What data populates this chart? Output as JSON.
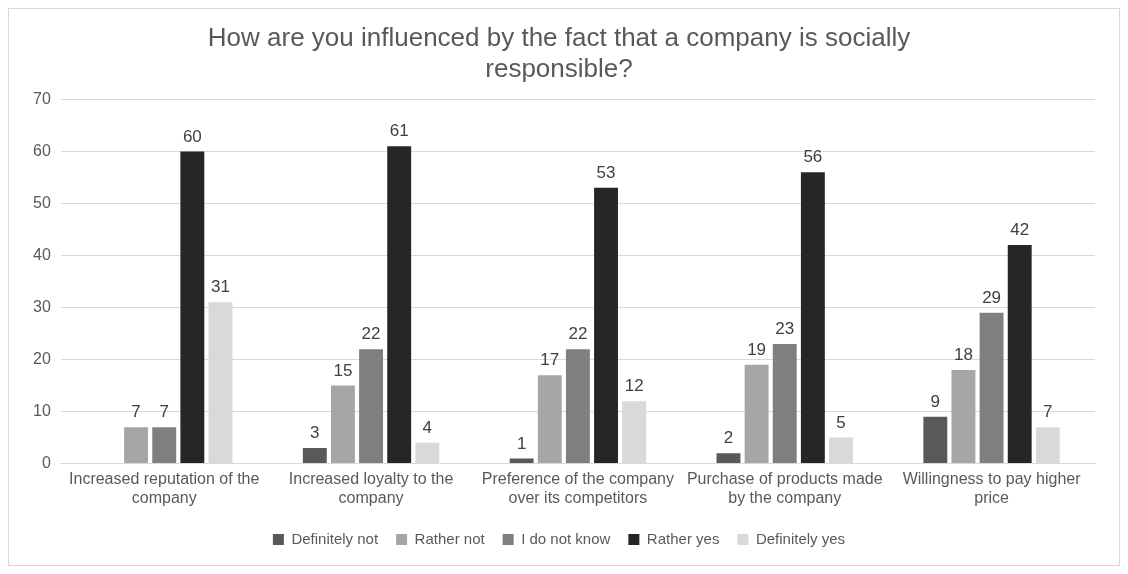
{
  "chart_data": {
    "type": "bar",
    "title": "How are you influenced by the fact that a company is socially responsible?",
    "categories": [
      "Increased reputation of the company",
      "Increased loyalty to the company",
      "Preference of the company over its competitors",
      "Purchase of products made by the company",
      "Willingness to pay higher price"
    ],
    "series": [
      {
        "name": "Definitely not",
        "color": "#595959",
        "values": [
          null,
          3,
          1,
          2,
          9
        ]
      },
      {
        "name": "Rather not",
        "color": "#a6a6a6",
        "values": [
          7,
          15,
          17,
          19,
          18
        ]
      },
      {
        "name": "I do not know",
        "color": "#7f7f7f",
        "values": [
          7,
          22,
          22,
          23,
          29
        ]
      },
      {
        "name": "Rather yes",
        "color": "#262626",
        "values": [
          60,
          61,
          53,
          56,
          42
        ]
      },
      {
        "name": "Definitely yes",
        "color": "#d9d9d9",
        "values": [
          31,
          4,
          12,
          5,
          7
        ]
      }
    ],
    "ylim": [
      0,
      70
    ],
    "yticks": [
      0,
      10,
      20,
      30,
      40,
      50,
      60,
      70
    ],
    "grid": "y",
    "legend": "bottom",
    "data_labels": true
  }
}
